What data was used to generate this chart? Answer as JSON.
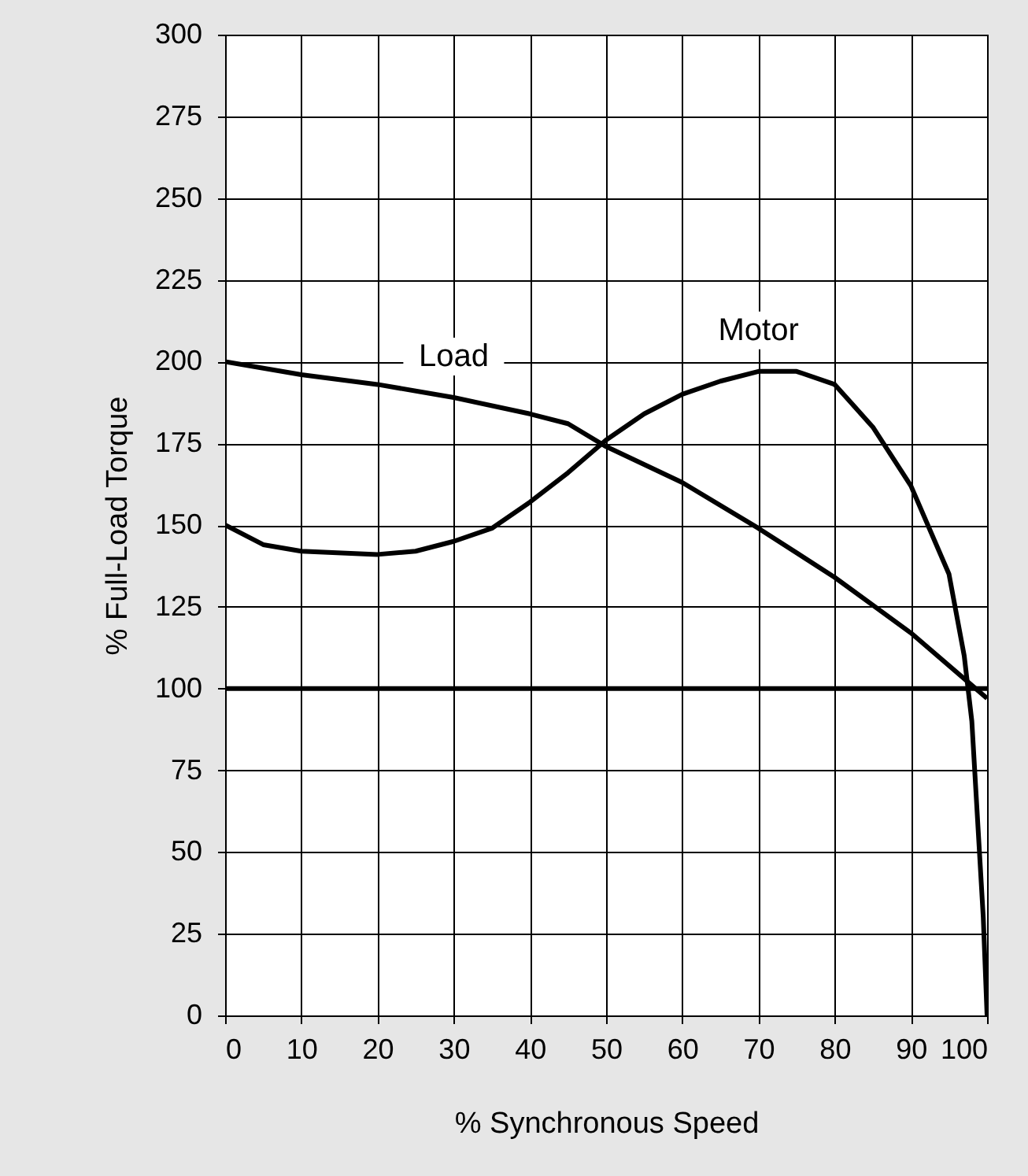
{
  "chart_data": {
    "type": "line",
    "xlabel": "% Synchronous Speed",
    "ylabel": "% Full-Load Torque",
    "xlim": [
      0,
      100
    ],
    "xticks": [
      0,
      10,
      20,
      30,
      40,
      50,
      60,
      70,
      80,
      90,
      100
    ],
    "ylim": [
      0,
      300
    ],
    "yticks": [
      0,
      25,
      50,
      75,
      100,
      125,
      150,
      175,
      200,
      225,
      250,
      275,
      300
    ],
    "grid": true,
    "marker": "none",
    "line_style": "solid",
    "ref_lines": [
      {
        "axis": "y",
        "value": 100,
        "color": "#000000"
      }
    ],
    "series": [
      {
        "name": "Load",
        "color": "#000000",
        "x": [
          0,
          10,
          20,
          30,
          40,
          45,
          50,
          60,
          70,
          80,
          90,
          100
        ],
        "values": [
          200,
          196,
          193,
          189,
          184,
          181,
          174,
          163,
          149,
          134,
          117,
          97
        ]
      },
      {
        "name": "Motor",
        "color": "#000000",
        "x": [
          0,
          5,
          10,
          20,
          25,
          30,
          35,
          40,
          45,
          50,
          55,
          60,
          65,
          70,
          75,
          80,
          85,
          90,
          95,
          97,
          98,
          99,
          99.5,
          100
        ],
        "values": [
          150,
          144,
          142,
          141,
          142,
          145,
          149,
          157,
          166,
          176,
          184,
          190,
          194,
          197,
          197,
          193,
          180,
          162,
          135,
          110,
          90,
          50,
          30,
          0
        ]
      }
    ]
  }
}
